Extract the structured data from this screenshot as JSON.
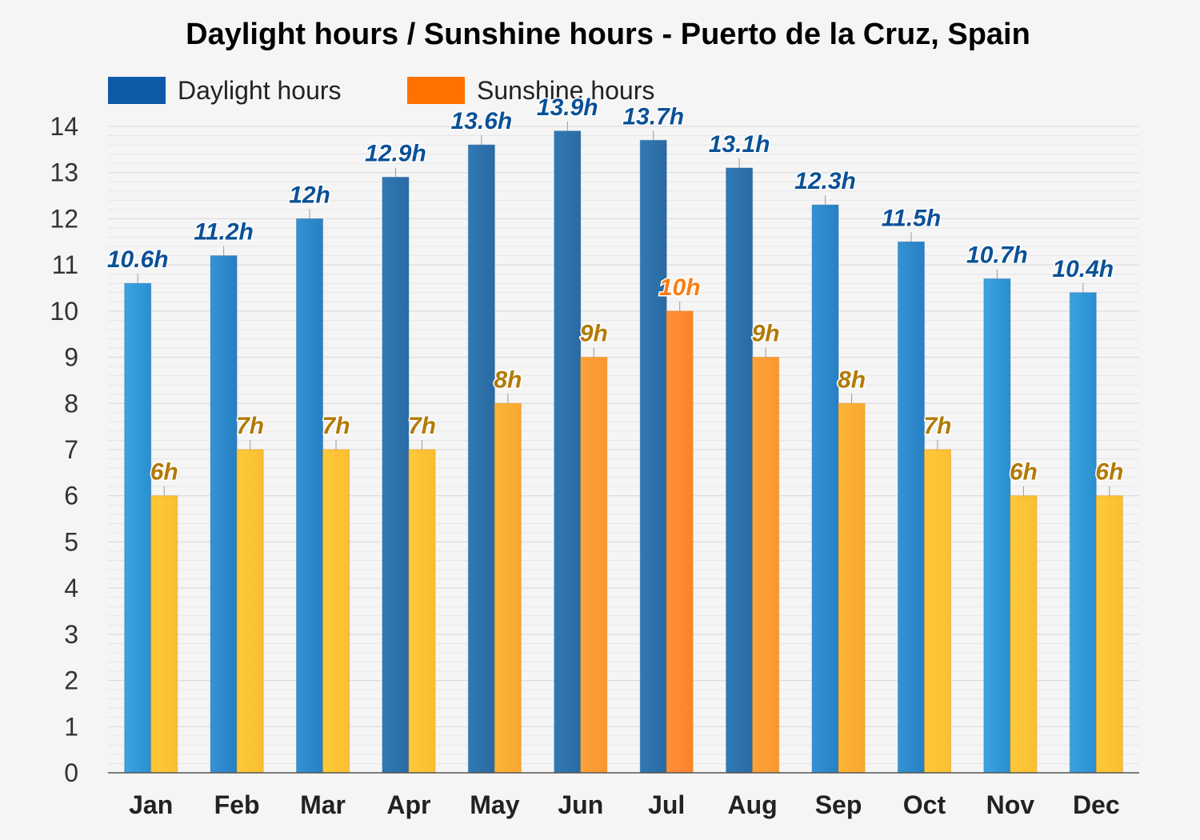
{
  "chart_data": {
    "type": "bar",
    "title": "Daylight hours / Sunshine hours - Puerto de la Cruz, Spain",
    "categories": [
      "Jan",
      "Feb",
      "Mar",
      "Apr",
      "May",
      "Jun",
      "Jul",
      "Aug",
      "Sep",
      "Oct",
      "Nov",
      "Dec"
    ],
    "series": [
      {
        "name": "Daylight hours",
        "values": [
          10.6,
          11.2,
          12,
          12.9,
          13.6,
          13.9,
          13.7,
          13.1,
          12.3,
          11.5,
          10.7,
          10.4
        ],
        "labels": [
          "10.6h",
          "11.2h",
          "12h",
          "12.9h",
          "13.6h",
          "13.9h",
          "13.7h",
          "13.1h",
          "12.3h",
          "11.5h",
          "10.7h",
          "10.4h"
        ],
        "color": "#0d5aa8"
      },
      {
        "name": "Sunshine hours",
        "values": [
          6,
          7,
          7,
          7,
          8,
          9,
          10,
          9,
          8,
          7,
          6,
          6
        ],
        "labels": [
          "6h",
          "7h",
          "7h",
          "7h",
          "8h",
          "9h",
          "10h",
          "9h",
          "8h",
          "7h",
          "6h",
          "6h"
        ],
        "color": "#ff7200"
      }
    ],
    "y_ticks": [
      "0",
      "1",
      "2",
      "3",
      "4",
      "5",
      "6",
      "7",
      "8",
      "9",
      "10",
      "11",
      "12",
      "13",
      "14"
    ],
    "ylim": [
      0,
      14
    ],
    "xlabel": "",
    "ylabel": "",
    "legend_position": "top-left",
    "grid": true
  }
}
